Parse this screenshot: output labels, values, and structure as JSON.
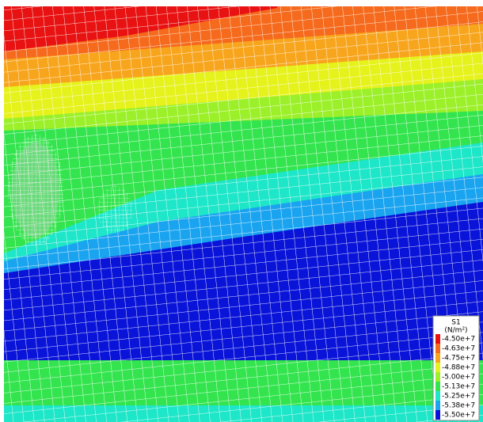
{
  "legend": {
    "title": "S1",
    "unit": "(N/m²)",
    "entries": [
      {
        "label": "-4.50e+7",
        "color": "#e81212"
      },
      {
        "label": "-4.63e+7",
        "color": "#f56a1c"
      },
      {
        "label": "-4.75e+7",
        "color": "#f8a51e"
      },
      {
        "label": "-4.88e+7",
        "color": "#e6f21c"
      },
      {
        "label": "-5.00e+7",
        "color": "#9cf02a"
      },
      {
        "label": "-5.13e+7",
        "color": "#34e44e"
      },
      {
        "label": "-5.25e+7",
        "color": "#1ee6c8"
      },
      {
        "label": "-5.38e+7",
        "color": "#1aa4f0"
      },
      {
        "label": "-5.50e+7",
        "color": "#0a14d8"
      }
    ]
  }
}
